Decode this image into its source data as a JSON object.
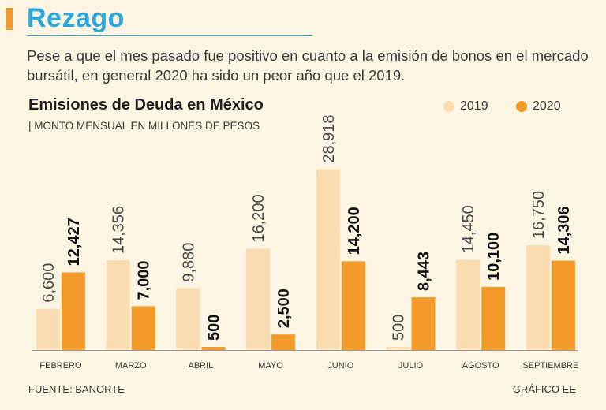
{
  "headline": "Rezago",
  "intro": "Pese a que el mes pasado fue positivo en cuanto a la emisión de bonos en el mercado bursátil, en general 2020 ha sido un peor año que el 2019.",
  "source": "FUENTE: BANORTE",
  "credit": "GRÁFICO EE",
  "colors": {
    "accent": "#f39a2a",
    "headline": "#2aa7dd",
    "background": "#fcf5e3"
  },
  "chart_data": {
    "type": "bar",
    "title": "Emisiones de Deuda en México",
    "subtitle": "| MONTO MENSUAL EN MILLONES DE PESOS",
    "categories": [
      "FEBRERO",
      "MARZO",
      "ABRIL",
      "MAYO",
      "JUNIO",
      "JULIO",
      "AGOSTO",
      "SEPTIEMBRE"
    ],
    "series": [
      {
        "name": "2019",
        "color": "#fbdbb0",
        "values": [
          6600,
          14356,
          9880,
          16200,
          28918,
          500,
          14450,
          16750
        ],
        "labels": [
          "6,600",
          "14,356",
          "9,880",
          "16,200",
          "28,918",
          "500",
          "14,450",
          "16,750"
        ]
      },
      {
        "name": "2020",
        "color": "#f39a2a",
        "values": [
          12427,
          7000,
          500,
          2500,
          14200,
          8443,
          10100,
          14306
        ],
        "labels": [
          "12,427",
          "7,000",
          "500",
          "2,500",
          "14,200",
          "8,443",
          "10,100",
          "14,306"
        ]
      }
    ],
    "ylim": [
      0,
      29000
    ],
    "legend": "top-right",
    "grid": false
  }
}
